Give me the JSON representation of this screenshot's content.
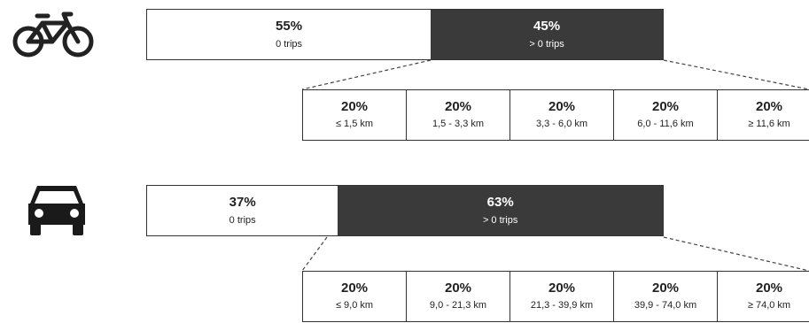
{
  "colors": {
    "dark_segment": "#3a3a3a",
    "light_segment": "#ffffff",
    "text_dark": "#222222"
  },
  "icons": {
    "bicycle": "bicycle-icon",
    "car": "car-icon"
  },
  "chart_data": [
    {
      "type": "bar",
      "mode": "bicycle",
      "split": [
        {
          "value": 55,
          "pct_label": "55%",
          "label": "0 trips"
        },
        {
          "value": 45,
          "pct_label": "45%",
          "label": "> 0 trips"
        }
      ],
      "breakdown": [
        {
          "value": 20,
          "pct_label": "20%",
          "range": "≤ 1,5 km"
        },
        {
          "value": 20,
          "pct_label": "20%",
          "range": "1,5 - 3,3 km"
        },
        {
          "value": 20,
          "pct_label": "20%",
          "range": "3,3 - 6,0 km"
        },
        {
          "value": 20,
          "pct_label": "20%",
          "range": "6,0 - 11,6 km"
        },
        {
          "value": 20,
          "pct_label": "20%",
          "range": "≥ 11,6 km"
        }
      ]
    },
    {
      "type": "bar",
      "mode": "car",
      "split": [
        {
          "value": 37,
          "pct_label": "37%",
          "label": "0 trips"
        },
        {
          "value": 63,
          "pct_label": "63%",
          "label": "> 0 trips"
        }
      ],
      "breakdown": [
        {
          "value": 20,
          "pct_label": "20%",
          "range": "≤ 9,0 km"
        },
        {
          "value": 20,
          "pct_label": "20%",
          "range": "9,0 - 21,3 km"
        },
        {
          "value": 20,
          "pct_label": "20%",
          "range": "21,3 - 39,9 km"
        },
        {
          "value": 20,
          "pct_label": "20%",
          "range": "39,9 - 74,0 km"
        },
        {
          "value": 20,
          "pct_label": "20%",
          "range": "≥ 74,0 km"
        }
      ]
    }
  ]
}
